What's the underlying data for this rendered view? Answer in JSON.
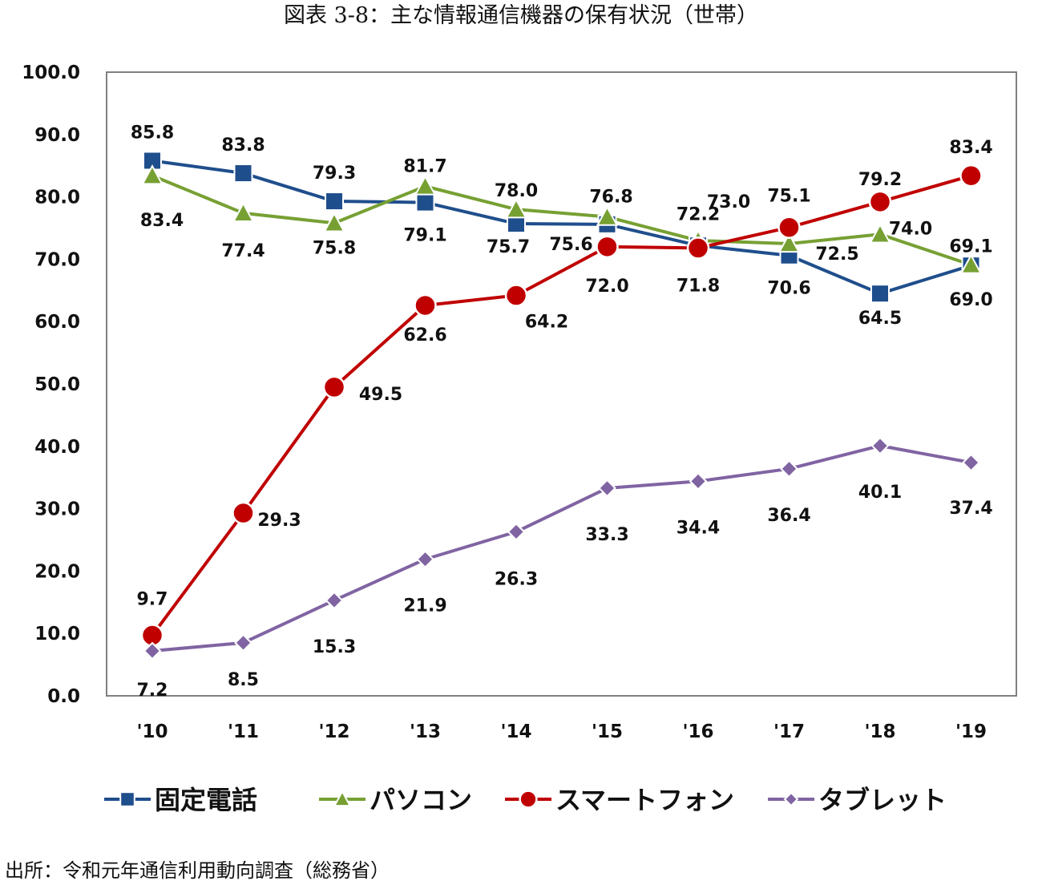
{
  "title": "図表 3-8：主な情報通信機器の保有状況（世帯）",
  "source": "出所：令和元年通信利用動向調査（総務省）",
  "chart_data": {
    "type": "line",
    "categories": [
      "'10",
      "'11",
      "'12",
      "'13",
      "'14",
      "'15",
      "'16",
      "'17",
      "'18",
      "'19"
    ],
    "ylim": [
      0,
      100
    ],
    "yticks": [
      "0.0",
      "10.0",
      "20.0",
      "30.0",
      "40.0",
      "50.0",
      "60.0",
      "70.0",
      "80.0",
      "90.0",
      "100.0"
    ],
    "grid": false,
    "legend_position": "bottom",
    "series": [
      {
        "name": "固定電話",
        "color": "#1F4E8C",
        "marker": "square",
        "values": [
          85.8,
          83.8,
          79.3,
          79.1,
          75.7,
          75.6,
          72.2,
          70.6,
          64.5,
          69.0
        ],
        "labels": [
          "85.8",
          "83.8",
          "79.3",
          "79.1",
          "75.7",
          "75.6",
          "72.2",
          "70.6",
          "64.5",
          "69.0"
        ]
      },
      {
        "name": "パソコン",
        "color": "#77A033",
        "marker": "triangle",
        "values": [
          83.4,
          77.4,
          75.8,
          81.7,
          78.0,
          76.8,
          73.0,
          72.5,
          74.0,
          69.1
        ],
        "labels": [
          "83.4",
          "77.4",
          "75.8",
          "81.7",
          "78.0",
          "76.8",
          "73.0",
          "72.5",
          "74.0",
          "69.1"
        ]
      },
      {
        "name": "スマートフォン",
        "color": "#C00000",
        "marker": "circle",
        "values": [
          9.7,
          29.3,
          49.5,
          62.6,
          64.2,
          72.0,
          71.8,
          75.1,
          79.2,
          83.4
        ],
        "labels": [
          "9.7",
          "29.3",
          "49.5",
          "62.6",
          "64.2",
          "72.0",
          "71.8",
          "75.1",
          "79.2",
          "83.4"
        ]
      },
      {
        "name": "タブレット",
        "color": "#8064A2",
        "marker": "diamond",
        "values": [
          7.2,
          8.5,
          15.3,
          21.9,
          26.3,
          33.3,
          34.4,
          36.4,
          40.1,
          37.4
        ],
        "labels": [
          "7.2",
          "8.5",
          "15.3",
          "21.9",
          "26.3",
          "33.3",
          "34.4",
          "36.4",
          "40.1",
          "37.4"
        ]
      }
    ]
  }
}
